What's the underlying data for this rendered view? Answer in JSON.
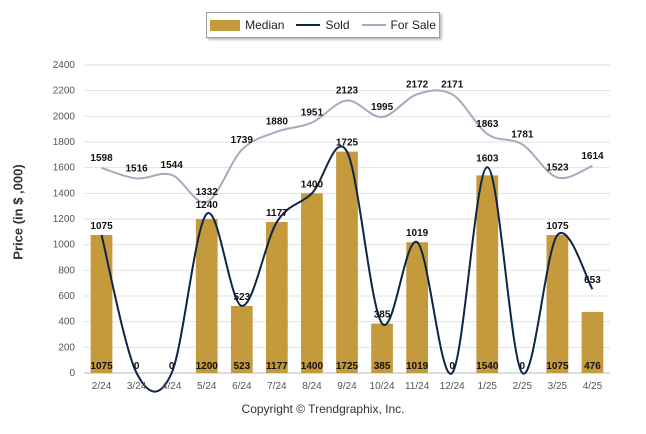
{
  "chart_data": {
    "type": "bar",
    "categories": [
      "2/24",
      "3/24",
      "4/24",
      "5/24",
      "6/24",
      "7/24",
      "8/24",
      "9/24",
      "10/24",
      "11/24",
      "12/24",
      "1/25",
      "2/25",
      "3/25",
      "4/25"
    ],
    "series": [
      {
        "name": "Median",
        "type": "bar",
        "color": "#c49a3c",
        "values": [
          1075,
          0,
          0,
          1200,
          523,
          1177,
          1400,
          1725,
          385,
          1019,
          0,
          1540,
          0,
          1075,
          476
        ]
      },
      {
        "name": "Sold",
        "type": "line",
        "color": "#0d2548",
        "values": [
          1075,
          0,
          0,
          1240,
          523,
          1177,
          1400,
          1725,
          385,
          1019,
          0,
          1603,
          0,
          1075,
          653
        ]
      },
      {
        "name": "For Sale",
        "type": "line",
        "color": "#a3acbf",
        "values": [
          1598,
          1516,
          1544,
          1332,
          1739,
          1880,
          1951,
          2123,
          1995,
          2172,
          2171,
          1863,
          1781,
          1523,
          1614
        ]
      }
    ],
    "ylabel": "Price (in $ ,000)",
    "xlabel": "",
    "ylim": [
      0,
      2400
    ],
    "yticks": [
      0,
      200,
      400,
      600,
      800,
      1000,
      1200,
      1400,
      1600,
      1800,
      2000,
      2200,
      2400
    ],
    "grid": true,
    "legend_position": "top-center"
  },
  "legend": {
    "median": "Median",
    "sold": "Sold",
    "for_sale": "For Sale"
  },
  "copyright": "Copyright © Trendgraphix, Inc."
}
